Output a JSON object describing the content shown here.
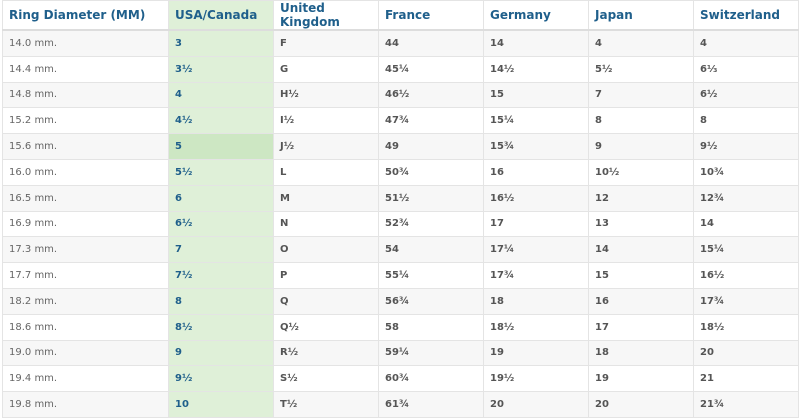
{
  "headers": [
    "Ring Diameter (MM)",
    "USA/Canada",
    "United Kingdom",
    "France",
    "Germany",
    "Japan",
    "Switzerland"
  ],
  "highlight_color": "#dff0d8",
  "header_color": "#1f5f8b",
  "selected_row": 4,
  "rows": [
    [
      "14.0 mm.",
      "3",
      "F",
      "44",
      "14",
      "4",
      "4"
    ],
    [
      "14.4 mm.",
      "3½",
      "G",
      "45¼",
      "14½",
      "5½",
      "6⅓"
    ],
    [
      "14.8 mm.",
      "4",
      "H½",
      "46½",
      "15",
      "7",
      "6½"
    ],
    [
      "15.2 mm.",
      "4½",
      "I½",
      "47¾",
      "15¼",
      "8",
      "8"
    ],
    [
      "15.6 mm.",
      "5",
      "J½",
      "49",
      "15¾",
      "9",
      "9½"
    ],
    [
      "16.0 mm.",
      "5½",
      "L",
      "50¾",
      "16",
      "10½",
      "10¾"
    ],
    [
      "16.5 mm.",
      "6",
      "M",
      "51½",
      "16½",
      "12",
      "12¾"
    ],
    [
      "16.9 mm.",
      "6½",
      "N",
      "52¾",
      "17",
      "13",
      "14"
    ],
    [
      "17.3 mm.",
      "7",
      "O",
      "54",
      "17¼",
      "14",
      "15¼"
    ],
    [
      "17.7 mm.",
      "7½",
      "P",
      "55¼",
      "17¾",
      "15",
      "16½"
    ],
    [
      "18.2 mm.",
      "8",
      "Q",
      "56¾",
      "18",
      "16",
      "17¾"
    ],
    [
      "18.6 mm.",
      "8½",
      "Q½",
      "58",
      "18½",
      "17",
      "18½"
    ],
    [
      "19.0 mm.",
      "9",
      "R½",
      "59¼",
      "19",
      "18",
      "20"
    ],
    [
      "19.4 mm.",
      "9½",
      "S½",
      "60¾",
      "19½",
      "19",
      "21"
    ],
    [
      "19.8 mm.",
      "10",
      "T½",
      "61¾",
      "20",
      "20",
      "21¾"
    ]
  ]
}
